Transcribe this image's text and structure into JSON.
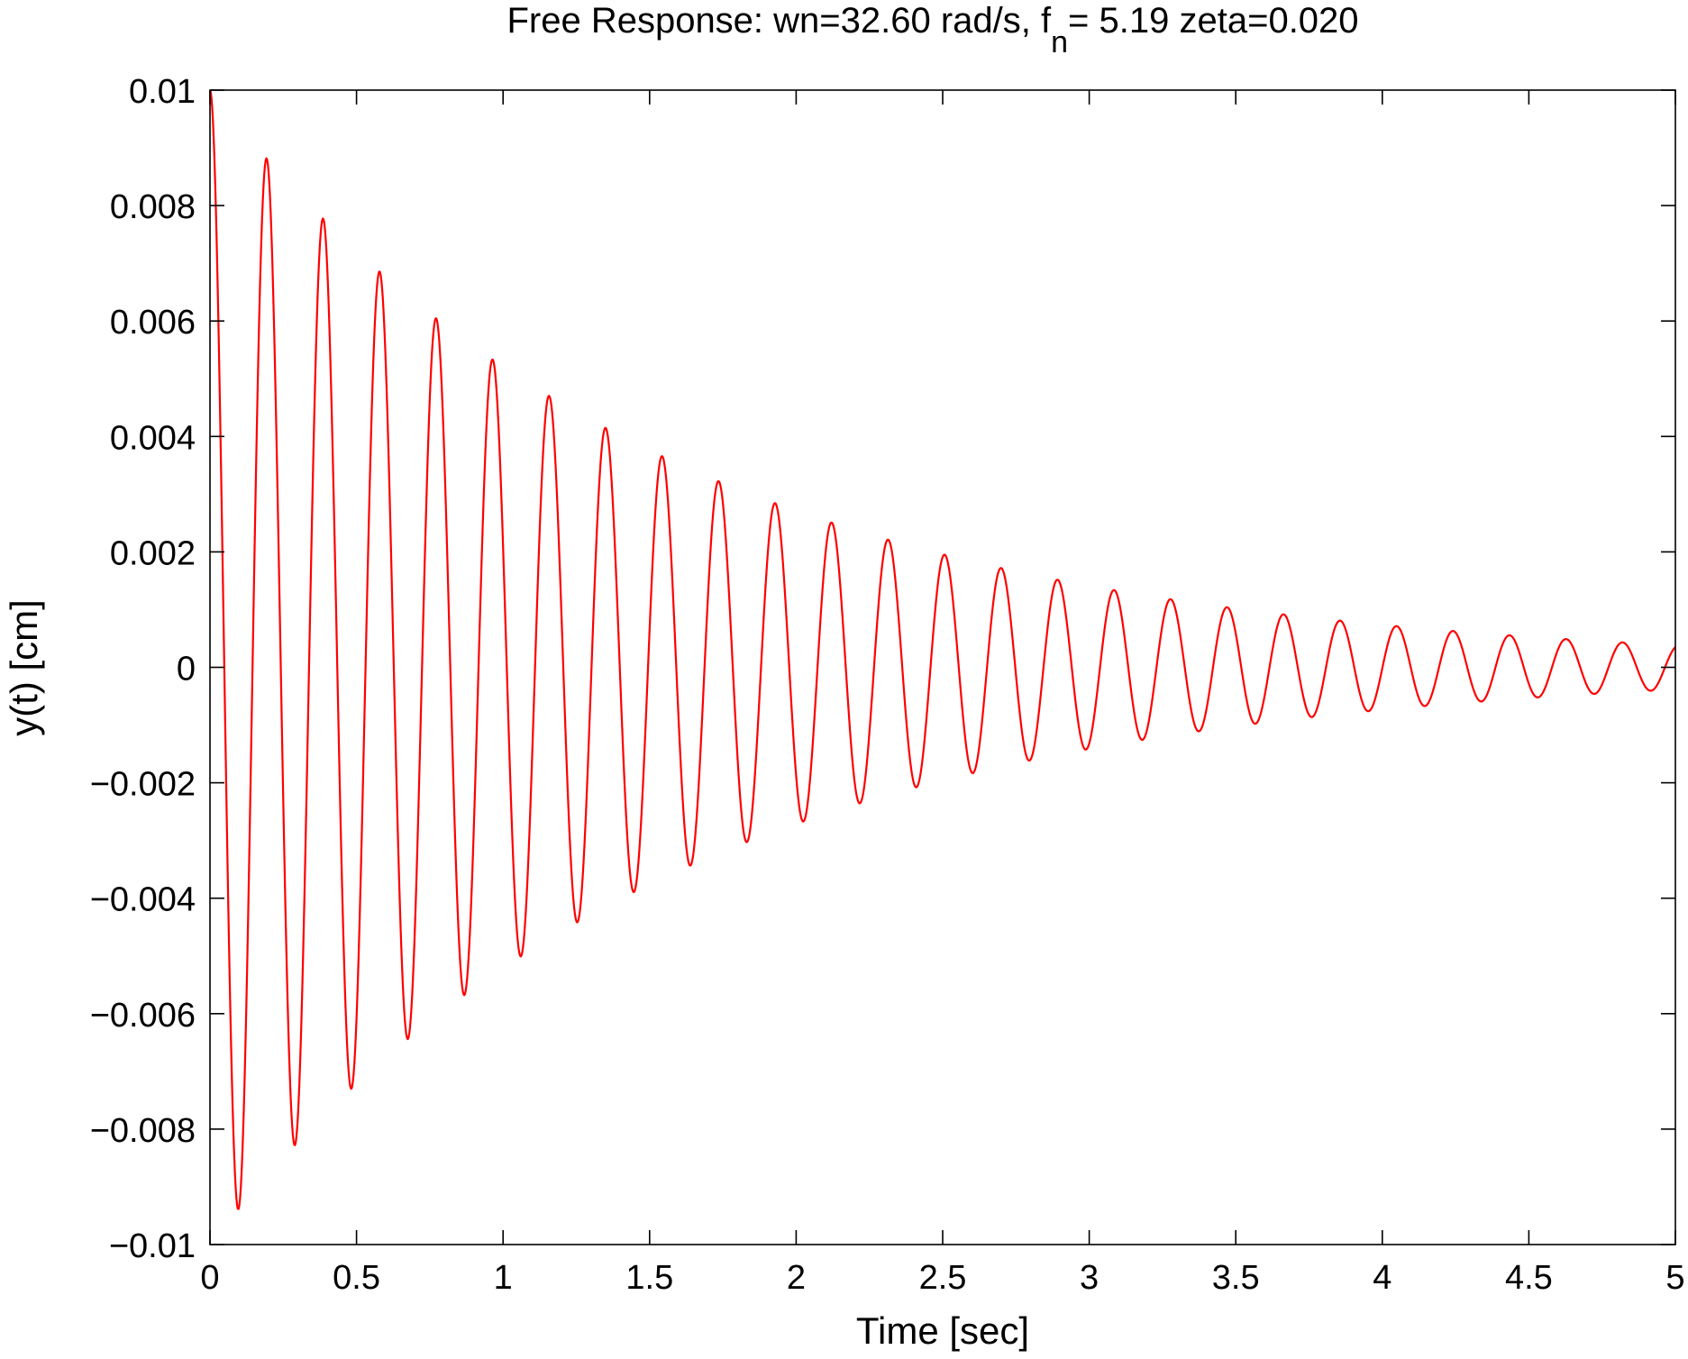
{
  "chart_data": {
    "type": "line",
    "title": {
      "prefix": "Free Response: wn=32.60 rad/s, f",
      "subscript": "n",
      "suffix": "= 5.19 zeta=0.020"
    },
    "xlabel": "Time [sec]",
    "ylabel": "y(t) [cm]",
    "xlim": [
      0,
      5
    ],
    "ylim": [
      -0.01,
      0.01
    ],
    "x_ticks": [
      0,
      0.5,
      1,
      1.5,
      2,
      2.5,
      3,
      3.5,
      4,
      4.5,
      5
    ],
    "x_tick_labels": [
      "0",
      "0.5",
      "1",
      "1.5",
      "2",
      "2.5",
      "3",
      "3.5",
      "4",
      "4.5",
      "5"
    ],
    "y_ticks": [
      -0.01,
      -0.008,
      -0.006,
      -0.004,
      -0.002,
      0,
      0.002,
      0.004,
      0.006,
      0.008,
      0.01
    ],
    "y_tick_labels": [
      "−0.01",
      "−0.008",
      "−0.006",
      "−0.004",
      "−0.002",
      "0",
      "0.002",
      "0.004",
      "0.006",
      "0.008",
      "0.01"
    ],
    "grid": false,
    "series": [
      {
        "color": "#ff0000",
        "model": {
          "initial_displacement": 0.01,
          "wn": 32.6,
          "zeta": 0.02,
          "t_start": 0,
          "t_end": 5,
          "samples": 2000
        }
      }
    ]
  }
}
